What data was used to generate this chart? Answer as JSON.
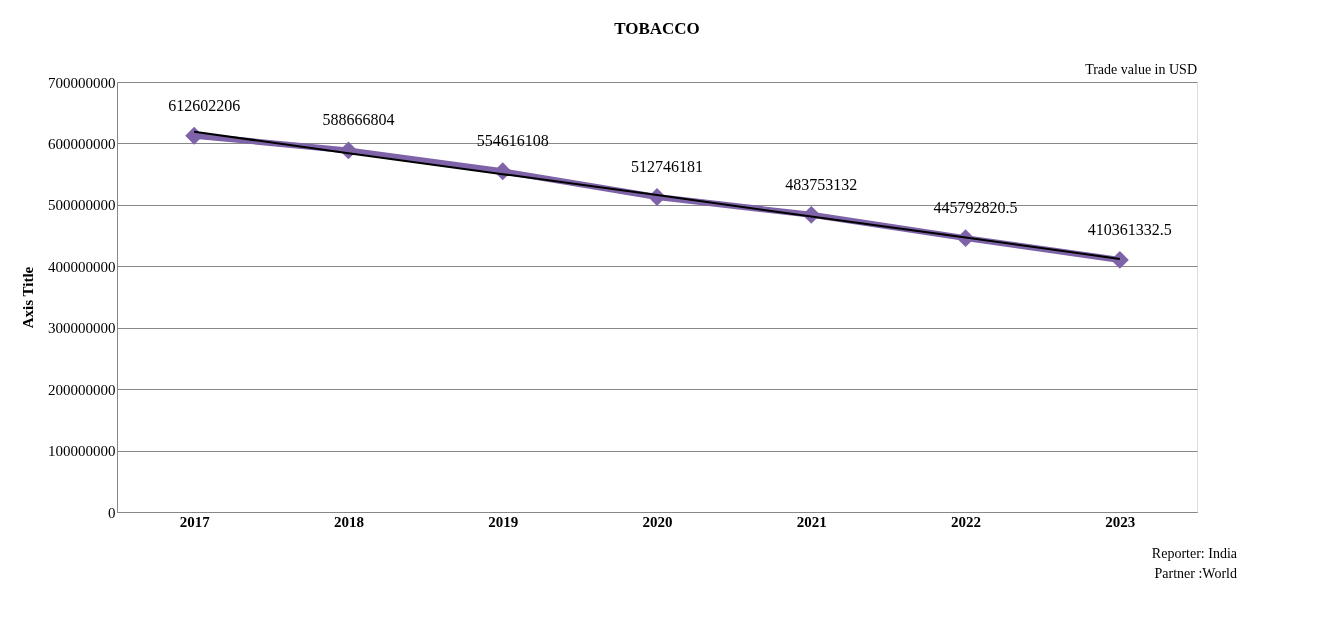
{
  "chart_data": {
    "type": "line",
    "title": "TOBACCO",
    "ylabel": "Axis Title",
    "categories": [
      "2017",
      "2018",
      "2019",
      "2020",
      "2021",
      "2022",
      "2023"
    ],
    "series": [
      {
        "color": "#7f63a8",
        "values": [
          612602206,
          588666804,
          554616108,
          512746181,
          483753132,
          445792820.5,
          410361332.5
        ],
        "value_labels": [
          "612602206",
          "588666804",
          "554616108",
          "512746181",
          "483753132",
          "445792820.5",
          "410361332.5"
        ],
        "marker": "diamond"
      },
      {
        "type": "line",
        "color": "#000000",
        "values": [
          619000000,
          584000000,
          550000000,
          516000000,
          481000000,
          447000000,
          412000000
        ],
        "marker": "none"
      }
    ],
    "ylim": [
      0,
      700000000
    ],
    "yticks": [
      0,
      100000000,
      200000000,
      300000000,
      400000000,
      500000000,
      600000000,
      700000000
    ],
    "grid": "y",
    "line_style": "solid",
    "annotations": [
      "Trade value in USD",
      "Reporter: India",
      "Partner :World"
    ]
  }
}
